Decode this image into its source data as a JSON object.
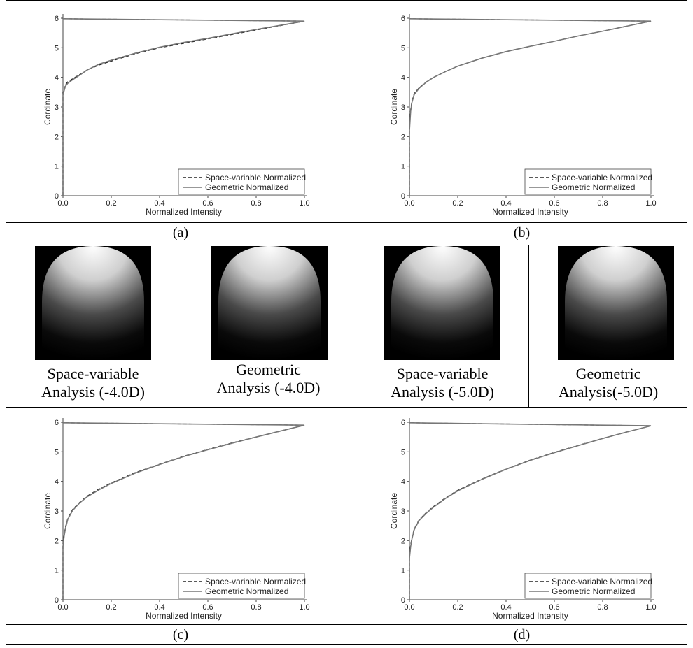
{
  "panels": {
    "a": {
      "caption": "(a)"
    },
    "b": {
      "caption": "(b)"
    },
    "c": {
      "caption": "(c)"
    },
    "d": {
      "caption": "(d)"
    }
  },
  "thumbnails": [
    {
      "label_line1": "Space-variable",
      "label_line2": "Analysis (-4.0D)"
    },
    {
      "label_line1": "Geometric",
      "label_line2": "Analysis (-4.0D)"
    },
    {
      "label_line1": "Space-variable",
      "label_line2": "Analysis (-5.0D)"
    },
    {
      "label_line1": "Geometric",
      "label_line2": "Analysis(-5.0D)"
    }
  ],
  "chart_data": [
    {
      "type": "line",
      "panel": "(a)",
      "xlabel": "Normalized Intensity",
      "ylabel": "Cordinate",
      "xlim": [
        0,
        1.0
      ],
      "ylim": [
        0,
        6
      ],
      "xticks": [
        "0.0",
        "0.2",
        "0.4",
        "0.6",
        "0.8",
        "1.0"
      ],
      "yticks": [
        "0",
        "1",
        "2",
        "3",
        "4",
        "5",
        "6"
      ],
      "legend_position": "bottom-right",
      "series": [
        {
          "name": "Space-variable Normalized",
          "style": "dashed",
          "x": [
            0,
            0,
            0.005,
            0.01,
            0.02,
            0.04,
            0.07,
            0.1,
            0.15,
            0.2,
            0.3,
            0.4,
            0.5,
            0.6,
            0.7,
            0.8,
            0.9,
            1.0,
            0.0
          ],
          "y": [
            0,
            3.5,
            3.6,
            3.75,
            3.85,
            3.95,
            4.1,
            4.25,
            4.42,
            4.55,
            4.8,
            5.0,
            5.15,
            5.3,
            5.45,
            5.6,
            5.75,
            5.9,
            5.98
          ]
        },
        {
          "name": "Geometric Normalized",
          "style": "solid",
          "x": [
            0,
            0,
            0.005,
            0.01,
            0.02,
            0.04,
            0.07,
            0.1,
            0.15,
            0.2,
            0.3,
            0.4,
            0.5,
            0.6,
            0.7,
            0.8,
            0.9,
            1.0,
            0.0
          ],
          "y": [
            0,
            3.4,
            3.55,
            3.7,
            3.8,
            3.92,
            4.08,
            4.25,
            4.45,
            4.58,
            4.82,
            5.02,
            5.18,
            5.32,
            5.47,
            5.62,
            5.76,
            5.9,
            5.98
          ]
        }
      ]
    },
    {
      "type": "line",
      "panel": "(b)",
      "xlabel": "Normalized Intensity",
      "ylabel": "Cordinate",
      "xlim": [
        0,
        1.0
      ],
      "ylim": [
        0,
        6
      ],
      "xticks": [
        "0.0",
        "0.2",
        "0.4",
        "0.6",
        "0.8",
        "1.0"
      ],
      "yticks": [
        "0",
        "1",
        "2",
        "3",
        "4",
        "5",
        "6"
      ],
      "legend_position": "bottom-right",
      "series": [
        {
          "name": "Space-variable Normalized",
          "style": "dashed",
          "x": [
            0,
            0,
            0.005,
            0.01,
            0.02,
            0.04,
            0.07,
            0.1,
            0.15,
            0.2,
            0.3,
            0.4,
            0.5,
            0.6,
            0.7,
            0.8,
            0.9,
            1.0,
            0.0
          ],
          "y": [
            0,
            2.3,
            2.9,
            3.2,
            3.45,
            3.65,
            3.85,
            4.0,
            4.2,
            4.38,
            4.65,
            4.87,
            5.05,
            5.22,
            5.4,
            5.56,
            5.73,
            5.9,
            5.98
          ]
        },
        {
          "name": "Geometric Normalized",
          "style": "solid",
          "x": [
            0,
            0,
            0.005,
            0.01,
            0.02,
            0.04,
            0.07,
            0.1,
            0.15,
            0.2,
            0.3,
            0.4,
            0.5,
            0.6,
            0.7,
            0.8,
            0.9,
            1.0,
            0.0
          ],
          "y": [
            0,
            2.2,
            2.85,
            3.15,
            3.42,
            3.63,
            3.84,
            4.0,
            4.2,
            4.38,
            4.65,
            4.87,
            5.05,
            5.22,
            5.4,
            5.56,
            5.73,
            5.9,
            5.98
          ]
        }
      ]
    },
    {
      "type": "line",
      "panel": "(c)",
      "xlabel": "Normalized Intensity",
      "ylabel": "Cordinate",
      "xlim": [
        0,
        1.0
      ],
      "ylim": [
        0,
        6
      ],
      "xticks": [
        "0.0",
        "0.2",
        "0.4",
        "0.6",
        "0.8",
        "1.0"
      ],
      "yticks": [
        "0",
        "1",
        "2",
        "3",
        "4",
        "5",
        "6"
      ],
      "legend_position": "bottom-right",
      "series": [
        {
          "name": "Space-variable Normalized",
          "style": "dashed",
          "x": [
            0,
            0,
            0.005,
            0.01,
            0.02,
            0.04,
            0.07,
            0.1,
            0.15,
            0.2,
            0.3,
            0.4,
            0.5,
            0.6,
            0.7,
            0.8,
            0.9,
            1.0,
            0.0
          ],
          "y": [
            0,
            1.9,
            2.2,
            2.45,
            2.75,
            3.05,
            3.3,
            3.5,
            3.75,
            3.95,
            4.3,
            4.58,
            4.85,
            5.08,
            5.3,
            5.5,
            5.7,
            5.9,
            5.98
          ]
        },
        {
          "name": "Geometric Normalized",
          "style": "solid",
          "x": [
            0,
            0,
            0.005,
            0.01,
            0.02,
            0.04,
            0.07,
            0.1,
            0.15,
            0.2,
            0.3,
            0.4,
            0.5,
            0.6,
            0.7,
            0.8,
            0.9,
            1.0,
            0.0
          ],
          "y": [
            0,
            1.8,
            2.15,
            2.4,
            2.72,
            3.02,
            3.28,
            3.48,
            3.72,
            3.93,
            4.28,
            4.57,
            4.84,
            5.07,
            5.29,
            5.5,
            5.7,
            5.9,
            5.98
          ]
        }
      ]
    },
    {
      "type": "line",
      "panel": "(d)",
      "xlabel": "Normalized Intensity",
      "ylabel": "Cordinate",
      "xlim": [
        0,
        1.0
      ],
      "ylim": [
        0,
        6
      ],
      "xticks": [
        "0.0",
        "0.2",
        "0.4",
        "0.6",
        "0.8",
        "1.0"
      ],
      "yticks": [
        "0",
        "1",
        "2",
        "3",
        "4",
        "5",
        "6"
      ],
      "legend_position": "bottom-right",
      "series": [
        {
          "name": "Space-variable Normalized",
          "style": "dashed",
          "x": [
            0,
            0,
            0.005,
            0.01,
            0.02,
            0.04,
            0.07,
            0.1,
            0.15,
            0.2,
            0.3,
            0.4,
            0.5,
            0.6,
            0.7,
            0.8,
            0.9,
            1.0,
            0.0
          ],
          "y": [
            0,
            1.5,
            1.85,
            2.1,
            2.4,
            2.7,
            2.95,
            3.15,
            3.45,
            3.7,
            4.08,
            4.42,
            4.72,
            4.98,
            5.22,
            5.45,
            5.67,
            5.88,
            5.98
          ]
        },
        {
          "name": "Geometric Normalized",
          "style": "solid",
          "x": [
            0,
            0,
            0.005,
            0.01,
            0.02,
            0.04,
            0.07,
            0.1,
            0.15,
            0.2,
            0.3,
            0.4,
            0.5,
            0.6,
            0.7,
            0.8,
            0.9,
            1.0,
            0.0
          ],
          "y": [
            0,
            1.4,
            1.8,
            2.05,
            2.37,
            2.68,
            2.93,
            3.13,
            3.43,
            3.68,
            4.07,
            4.41,
            4.71,
            4.97,
            5.21,
            5.45,
            5.67,
            5.88,
            5.98
          ]
        }
      ]
    }
  ]
}
